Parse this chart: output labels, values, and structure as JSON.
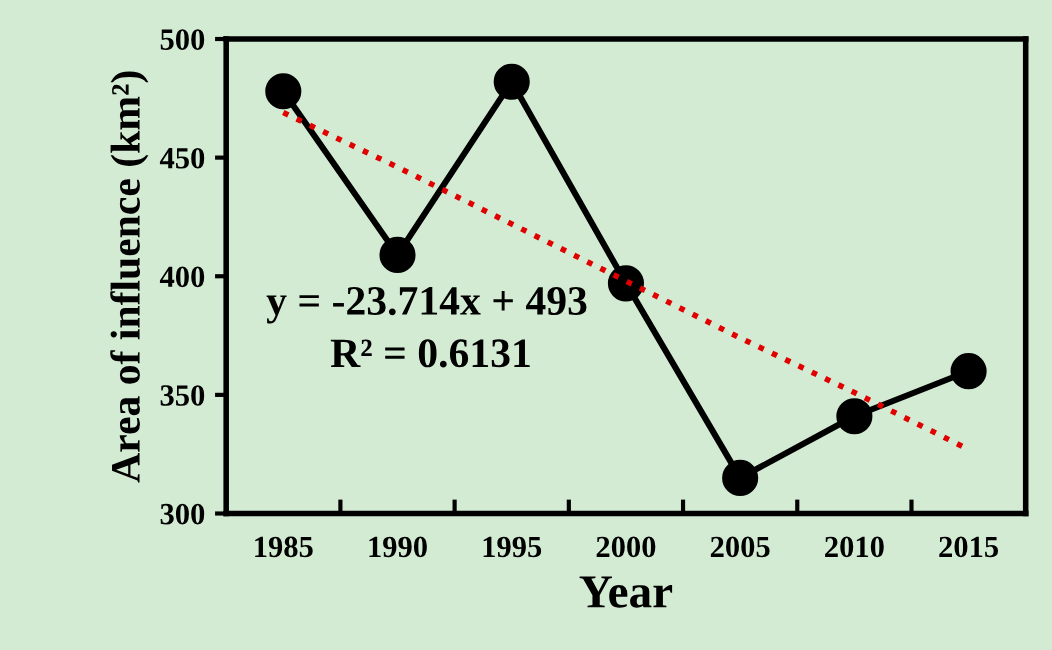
{
  "chart_data": {
    "type": "line",
    "xlabel": "Year",
    "ylabel": "Area of influence (km²)",
    "categories": [
      "1985",
      "1990",
      "1995",
      "2000",
      "2005",
      "2010",
      "2015"
    ],
    "series": [
      {
        "color": "#000000",
        "marker": "circle",
        "line_style": "solid",
        "values": [
          478,
          409,
          482,
          397,
          315,
          341,
          360
        ]
      },
      {
        "color": "#e00000",
        "marker": "none",
        "line_style": "dotted",
        "values": [
          469,
          446,
          422,
          398,
          374,
          351,
          327
        ]
      }
    ],
    "annotations": [
      "y = -23.714x + 493",
      "R² = 0.6131"
    ],
    "ylim": [
      300,
      500
    ],
    "yticks": [
      300,
      350,
      400,
      450,
      500
    ],
    "grid": false,
    "legend": false
  }
}
